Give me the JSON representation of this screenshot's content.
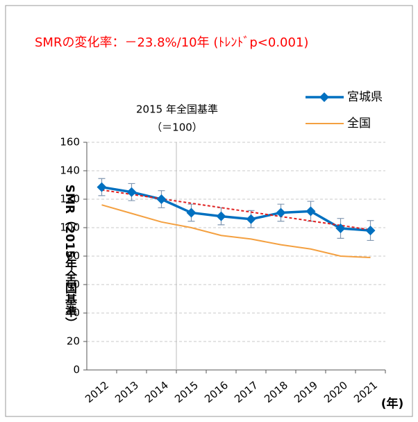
{
  "chart_data": {
    "type": "line",
    "title": "SMRの変化率：－23.8%/10年 (ﾄﾚﾝﾄﾞp<0.001)",
    "title_color": "#ff0000",
    "annotation": [
      "2015 年全国基準",
      "（＝100）"
    ],
    "y_label": "SMR（2015年全国基準）",
    "x_unit": "(年)",
    "categories": [
      "2012",
      "2013",
      "2014",
      "2015",
      "2016",
      "2017",
      "2018",
      "2019",
      "2020",
      "2021"
    ],
    "series": [
      {
        "name": "宮城県",
        "color": "#0070c0",
        "marker": "diamond",
        "values": [
          128.5,
          125,
          120,
          110.5,
          108,
          106,
          110.5,
          111.5,
          99.5,
          98
        ],
        "errors": [
          6,
          6,
          6,
          6,
          6,
          6,
          6,
          7,
          7,
          7
        ]
      },
      {
        "name": "全国",
        "color": "#f4a040",
        "marker": "none",
        "values": [
          116,
          110,
          104,
          100,
          94.5,
          92,
          88,
          85,
          80,
          79
        ]
      }
    ],
    "trendline": {
      "color": "#e02020",
      "start": 126.5,
      "end": 98.5
    },
    "reference_line": {
      "category": "2015"
    },
    "ylim": [
      0,
      160
    ],
    "yticks": [
      0,
      20,
      40,
      60,
      80,
      100,
      120,
      140,
      160
    ],
    "grid": true
  }
}
